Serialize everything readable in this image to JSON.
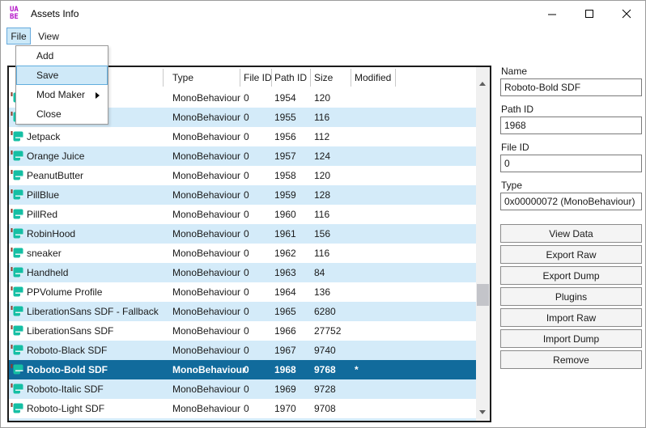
{
  "window": {
    "title": "Assets Info",
    "logo_line1": "UA",
    "logo_line2": "BE"
  },
  "menu": {
    "items": [
      "File",
      "View"
    ],
    "dropdown": {
      "items": [
        {
          "label": "Add",
          "highlighted": false,
          "submenu": false
        },
        {
          "label": "Save",
          "highlighted": true,
          "submenu": false
        },
        {
          "label": "Mod Maker",
          "highlighted": false,
          "submenu": true
        },
        {
          "label": "Close",
          "highlighted": false,
          "submenu": false
        }
      ]
    }
  },
  "table": {
    "headers": [
      "",
      "Type",
      "File ID",
      "Path ID",
      "Size",
      "Modified"
    ],
    "rows": [
      {
        "name": "",
        "type": "MonoBehaviour",
        "file_id": "0",
        "path_id": "1954",
        "size": "120",
        "modified": "",
        "selected": false
      },
      {
        "name": "",
        "type": "MonoBehaviour",
        "file_id": "0",
        "path_id": "1955",
        "size": "116",
        "modified": "",
        "selected": false
      },
      {
        "name": "Jetpack",
        "type": "MonoBehaviour",
        "file_id": "0",
        "path_id": "1956",
        "size": "112",
        "modified": "",
        "selected": false
      },
      {
        "name": "Orange Juice",
        "type": "MonoBehaviour",
        "file_id": "0",
        "path_id": "1957",
        "size": "124",
        "modified": "",
        "selected": false
      },
      {
        "name": "PeanutButter",
        "type": "MonoBehaviour",
        "file_id": "0",
        "path_id": "1958",
        "size": "120",
        "modified": "",
        "selected": false
      },
      {
        "name": "PillBlue",
        "type": "MonoBehaviour",
        "file_id": "0",
        "path_id": "1959",
        "size": "128",
        "modified": "",
        "selected": false
      },
      {
        "name": "PillRed",
        "type": "MonoBehaviour",
        "file_id": "0",
        "path_id": "1960",
        "size": "116",
        "modified": "",
        "selected": false
      },
      {
        "name": "RobinHood",
        "type": "MonoBehaviour",
        "file_id": "0",
        "path_id": "1961",
        "size": "156",
        "modified": "",
        "selected": false
      },
      {
        "name": "sneaker",
        "type": "MonoBehaviour",
        "file_id": "0",
        "path_id": "1962",
        "size": "116",
        "modified": "",
        "selected": false
      },
      {
        "name": "Handheld",
        "type": "MonoBehaviour",
        "file_id": "0",
        "path_id": "1963",
        "size": "84",
        "modified": "",
        "selected": false
      },
      {
        "name": "PPVolume Profile",
        "type": "MonoBehaviour",
        "file_id": "0",
        "path_id": "1964",
        "size": "136",
        "modified": "",
        "selected": false
      },
      {
        "name": "LiberationSans SDF - Fallback",
        "type": "MonoBehaviour",
        "file_id": "0",
        "path_id": "1965",
        "size": "6280",
        "modified": "",
        "selected": false
      },
      {
        "name": "LiberationSans SDF",
        "type": "MonoBehaviour",
        "file_id": "0",
        "path_id": "1966",
        "size": "27752",
        "modified": "",
        "selected": false
      },
      {
        "name": "Roboto-Black SDF",
        "type": "MonoBehaviour",
        "file_id": "0",
        "path_id": "1967",
        "size": "9740",
        "modified": "",
        "selected": false
      },
      {
        "name": "Roboto-Bold SDF",
        "type": "MonoBehaviour",
        "file_id": "0",
        "path_id": "1968",
        "size": "9768",
        "modified": "*",
        "selected": true
      },
      {
        "name": "Roboto-Italic SDF",
        "type": "MonoBehaviour",
        "file_id": "0",
        "path_id": "1969",
        "size": "9728",
        "modified": "",
        "selected": false
      },
      {
        "name": "Roboto-Light SDF",
        "type": "MonoBehaviour",
        "file_id": "0",
        "path_id": "1970",
        "size": "9708",
        "modified": "",
        "selected": false
      }
    ]
  },
  "panel": {
    "fields": [
      {
        "label": "Name",
        "value": "Roboto-Bold SDF"
      },
      {
        "label": "Path ID",
        "value": "1968"
      },
      {
        "label": "File ID",
        "value": "0"
      },
      {
        "label": "Type",
        "value": "0x00000072 (MonoBehaviour)"
      }
    ],
    "buttons": [
      "View Data",
      "Export Raw",
      "Export Dump",
      "Plugins",
      "Import Raw",
      "Import Dump",
      "Remove"
    ]
  },
  "colors": {
    "selection_bg": "#116b9c",
    "alt_row_bg": "#d4ebf9",
    "menu_highlight_bg": "#cde9f8",
    "menu_highlight_border": "#66aadd",
    "asset_icon_teal": "#15bfa4",
    "asset_icon_tick": "#8c3b2b",
    "logo_purple": "#b414c8"
  }
}
